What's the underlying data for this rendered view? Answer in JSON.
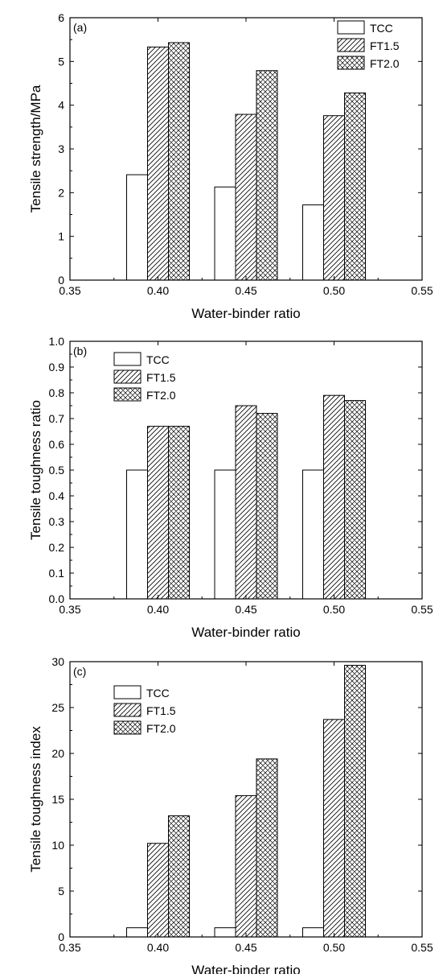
{
  "chart_data": [
    {
      "panel_label": "(a)",
      "type": "bar",
      "xlabel": "Water-binder ratio",
      "ylabel": "Tensile strength/MPa",
      "xlim": [
        0.35,
        0.55
      ],
      "ylim": [
        0,
        6
      ],
      "x_ticks": [
        "0.35",
        "0.40",
        "0.45",
        "0.50",
        "0.55"
      ],
      "y_ticks": [
        "0",
        "1",
        "2",
        "3",
        "4",
        "5",
        "6"
      ],
      "categories": [
        0.4,
        0.45,
        0.5
      ],
      "legend_position": "top-right",
      "series": [
        {
          "name": "TCC",
          "pattern": "none",
          "values": [
            2.41,
            2.13,
            1.72
          ]
        },
        {
          "name": "FT1.5",
          "pattern": "diagonal",
          "values": [
            5.33,
            3.79,
            3.76
          ]
        },
        {
          "name": "FT2.0",
          "pattern": "crosshatch",
          "values": [
            5.43,
            4.79,
            4.28
          ]
        }
      ]
    },
    {
      "panel_label": "(b)",
      "type": "bar",
      "xlabel": "Water-binder ratio",
      "ylabel": "Tensile toughness ratio",
      "xlim": [
        0.35,
        0.55
      ],
      "ylim": [
        0,
        1.0
      ],
      "x_ticks": [
        "0.35",
        "0.40",
        "0.45",
        "0.50",
        "0.55"
      ],
      "y_ticks": [
        "0.0",
        "0.1",
        "0.2",
        "0.3",
        "0.4",
        "0.5",
        "0.6",
        "0.7",
        "0.8",
        "0.9",
        "1.0"
      ],
      "categories": [
        0.4,
        0.45,
        0.5
      ],
      "legend_position": "top-left",
      "series": [
        {
          "name": "TCC",
          "pattern": "none",
          "values": [
            0.5,
            0.5,
            0.5
          ]
        },
        {
          "name": "FT1.5",
          "pattern": "diagonal",
          "values": [
            0.67,
            0.75,
            0.79
          ]
        },
        {
          "name": "FT2.0",
          "pattern": "crosshatch",
          "values": [
            0.67,
            0.72,
            0.77
          ]
        }
      ]
    },
    {
      "panel_label": "(c)",
      "type": "bar",
      "xlabel": "Water-binder ratio",
      "ylabel": "Tensile toughness index",
      "xlim": [
        0.35,
        0.55
      ],
      "ylim": [
        0,
        30
      ],
      "x_ticks": [
        "0.35",
        "0.40",
        "0.45",
        "0.50",
        "0.55"
      ],
      "y_ticks": [
        "0",
        "5",
        "10",
        "15",
        "20",
        "25",
        "30"
      ],
      "categories": [
        0.4,
        0.45,
        0.5
      ],
      "legend_position": "top-left",
      "series": [
        {
          "name": "TCC",
          "pattern": "none",
          "values": [
            1.0,
            1.0,
            1.0
          ]
        },
        {
          "name": "FT1.5",
          "pattern": "diagonal",
          "values": [
            10.2,
            15.4,
            23.7
          ]
        },
        {
          "name": "FT2.0",
          "pattern": "crosshatch",
          "values": [
            13.2,
            19.4,
            29.6
          ]
        }
      ]
    }
  ]
}
